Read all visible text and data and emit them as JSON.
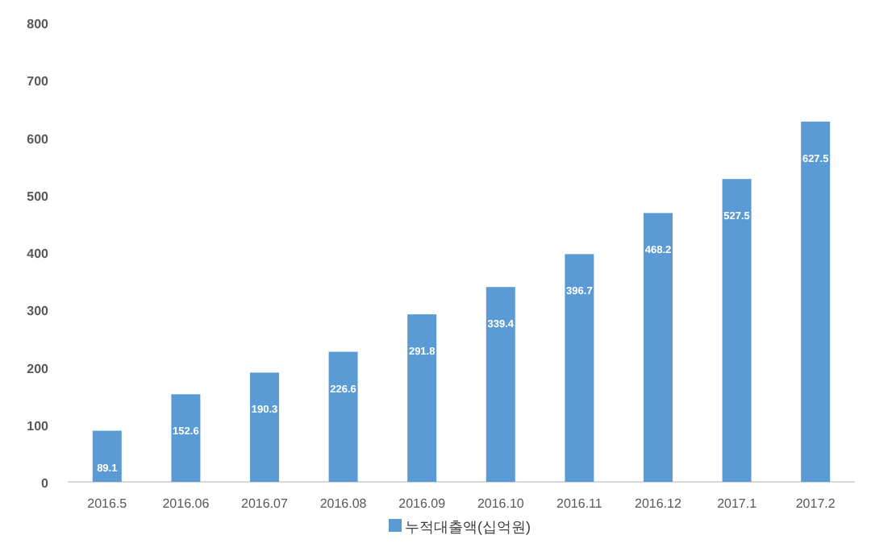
{
  "chart_data": {
    "type": "bar",
    "categories": [
      "2016.5",
      "2016.06",
      "2016.07",
      "2016.08",
      "2016.09",
      "2016.10",
      "2016.11",
      "2016.12",
      "2017.1",
      "2017.2"
    ],
    "series": [
      {
        "name": "누적대출액(십억원)",
        "color": "#5b9bd5",
        "values": [
          89.1,
          152.6,
          190.3,
          226.6,
          291.8,
          339.4,
          396.7,
          468.2,
          527.5,
          627.5
        ]
      }
    ],
    "ylim": [
      0,
      800
    ],
    "yticks": [
      0,
      100,
      200,
      300,
      400,
      500,
      600,
      700,
      800
    ],
    "data_labels": true,
    "legend": "bottom",
    "grid": false
  }
}
